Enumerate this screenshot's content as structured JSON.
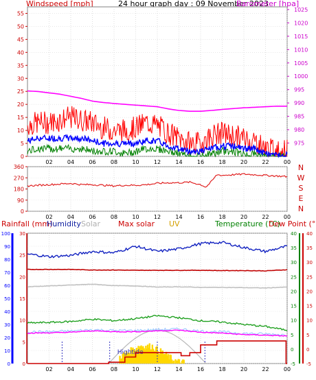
{
  "header": {
    "windspeed_label": "Windspeed [mph]",
    "title": "24 hour graph day : 09 November 2023",
    "barometer_label": "Barometer [hpa]"
  },
  "legend_lower": {
    "rainfall": "Rainfall (mm)",
    "humidity": "Humidity",
    "solar": "Solar",
    "max_solar": "Max solar",
    "uv": "UV",
    "temperature": "Temperature (°C)",
    "dew_point": "Dew Point (°C)"
  },
  "annotation": {
    "high_tide": "Hightide"
  },
  "colors": {
    "wind_gust": "#ff0000",
    "wind_avg": "#0000ff",
    "wind_low": "#008000",
    "barometer": "#ff00ff",
    "direction": "#e02020",
    "humidity": "#1020c0",
    "solar": "#c0c0c0",
    "max_solar": "#c00000",
    "uv": "#ffd700",
    "temperature": "#20a020",
    "dew_point": "#ff00ff",
    "rainfall": "#cc0000",
    "axis_left": "#0000ff",
    "axis_right_green": "#008000",
    "axis_right_red": "#cc0000"
  },
  "chart_data": [
    {
      "type": "line",
      "name": "windspeed-barometer",
      "x_ticks": [
        "02",
        "04",
        "06",
        "08",
        "10",
        "12",
        "14",
        "16",
        "18",
        "20",
        "22",
        "00"
      ],
      "y_left_ticks": [
        0,
        5,
        10,
        15,
        20,
        25,
        30,
        35,
        40,
        45,
        50,
        55
      ],
      "y_left_range": [
        0,
        57.5
      ],
      "y_right_ticks": [
        975,
        980,
        985,
        990,
        995,
        1000,
        1005,
        1010,
        1015,
        1020,
        1025
      ],
      "y_right_range": [
        970,
        1026
      ],
      "hours": [
        0,
        1,
        2,
        3,
        4,
        5,
        6,
        7,
        8,
        9,
        10,
        11,
        12,
        13,
        14,
        15,
        16,
        17,
        18,
        19,
        20,
        21,
        22,
        23,
        24
      ],
      "series": [
        {
          "key": "gust",
          "values": [
            12,
            13,
            13,
            14,
            15,
            14,
            13,
            11,
            10,
            10,
            11,
            13,
            12,
            9,
            7,
            5,
            5,
            8,
            9,
            8,
            7,
            6,
            3,
            2,
            2
          ]
        },
        {
          "key": "avg",
          "values": [
            6,
            7,
            7,
            7,
            7,
            7,
            6,
            5,
            5,
            5,
            5,
            6,
            6,
            4,
            3,
            2,
            2,
            3,
            4,
            4,
            3,
            3,
            1,
            0.5,
            0.5
          ]
        },
        {
          "key": "low",
          "values": [
            2,
            3,
            3,
            3,
            3,
            3,
            2,
            2,
            2,
            1,
            2,
            3,
            3,
            2,
            1,
            0,
            0,
            1,
            2,
            2,
            1,
            1,
            0,
            0,
            0
          ]
        },
        {
          "key": "baro",
          "values": [
            994.5,
            994.3,
            993.8,
            993.3,
            992.5,
            991.7,
            990.7,
            990.2,
            989.8,
            989.5,
            989.2,
            988.9,
            988.6,
            987.8,
            987.2,
            986.9,
            986.9,
            987.2,
            987.6,
            987.9,
            988.2,
            988.4,
            988.6,
            988.8,
            988.8
          ]
        }
      ]
    },
    {
      "type": "line",
      "name": "wind-direction",
      "x_ticks": [
        "02",
        "04",
        "06",
        "08",
        "10",
        "12",
        "14",
        "16",
        "18",
        "20",
        "22",
        "00"
      ],
      "y_left_ticks": [
        0,
        90,
        180,
        270,
        360
      ],
      "y_right_labels": [
        "N",
        "W",
        "S",
        "E",
        "N"
      ],
      "y_range": [
        0,
        360
      ],
      "hours": [
        0,
        1,
        2,
        3,
        4,
        5,
        6,
        7,
        8,
        9,
        10,
        11,
        12,
        13,
        14,
        15,
        16,
        16.5,
        17,
        17.5,
        18,
        19,
        20,
        21,
        22,
        23,
        24
      ],
      "values": [
        205,
        210,
        215,
        220,
        225,
        215,
        215,
        210,
        205,
        210,
        210,
        215,
        225,
        230,
        230,
        235,
        215,
        195,
        240,
        295,
        290,
        295,
        300,
        295,
        290,
        285,
        280
      ]
    },
    {
      "type": "line",
      "name": "rain-humidity-solar-temperature",
      "x_ticks": [
        "02",
        "04",
        "06",
        "08",
        "10",
        "12",
        "14",
        "16",
        "18",
        "20",
        "22",
        "00"
      ],
      "y_left_blue_ticks": [
        0,
        10,
        20,
        30,
        40,
        50,
        60,
        70,
        80,
        90,
        100
      ],
      "y_left_red_ticks": [
        0,
        5,
        10,
        15,
        20,
        25,
        30
      ],
      "y_right_green_ticks": [
        -5,
        0,
        5,
        10,
        15,
        20,
        25,
        30,
        35,
        40
      ],
      "y_right_red_ticks": [
        -5,
        0,
        5,
        10,
        15,
        20,
        25,
        30,
        35,
        40
      ],
      "temp_range": [
        -5,
        40
      ],
      "humidity_range": [
        0,
        100
      ],
      "rain_range": [
        0,
        30
      ],
      "hours": [
        0,
        2,
        4,
        6,
        8,
        10,
        12,
        14,
        16,
        18,
        20,
        22,
        24
      ],
      "series": [
        {
          "key": "humidity",
          "values": [
            84,
            82,
            83,
            86,
            85,
            90,
            86,
            88,
            92,
            93,
            89,
            86,
            90
          ]
        },
        {
          "key": "max_solar_line",
          "values": [
            27.5,
            27.5,
            27.5,
            27.3,
            27.3,
            27.2,
            27.2,
            27.2,
            27.2,
            27.1,
            27.1,
            27.0,
            27.4
          ]
        },
        {
          "key": "solar",
          "values": [
            21.5,
            21.8,
            22.1,
            22.4,
            21.9,
            21.8,
            21.4,
            21.5,
            21.3,
            21.3,
            21.2,
            21.1,
            21.4
          ]
        },
        {
          "key": "temperature",
          "values": [
            9.0,
            9.2,
            9.5,
            10.3,
            9.8,
            10.5,
            11.5,
            10.8,
            9.8,
            9.3,
            8.5,
            7.8,
            6.5
          ]
        },
        {
          "key": "dew_point",
          "values": [
            5.5,
            5.6,
            5.8,
            6.3,
            6.0,
            6.0,
            6.3,
            6.5,
            5.8,
            5.5,
            5.0,
            4.8,
            4.5
          ]
        },
        {
          "key": "rain_total",
          "values": [
            0,
            0,
            0,
            0,
            0.3,
            2.5,
            2.5,
            2.5,
            4.3,
            5.2,
            5.2,
            5.2,
            0
          ]
        }
      ],
      "max_solar_curve": {
        "start": 7.5,
        "end": 16.5,
        "peak_hour": 12.0,
        "peak_value": 6.5
      },
      "uv_bars": {
        "start": 8.5,
        "end": 14.5,
        "values": [
          2.0,
          3.0,
          4.0,
          5.0,
          6.0,
          5.5,
          5.8,
          4.5,
          3.5,
          2.2,
          1.0,
          0.3,
          0.1
        ]
      },
      "tide_markers": [
        3.2,
        7.6,
        12.0,
        16.4
      ]
    }
  ]
}
